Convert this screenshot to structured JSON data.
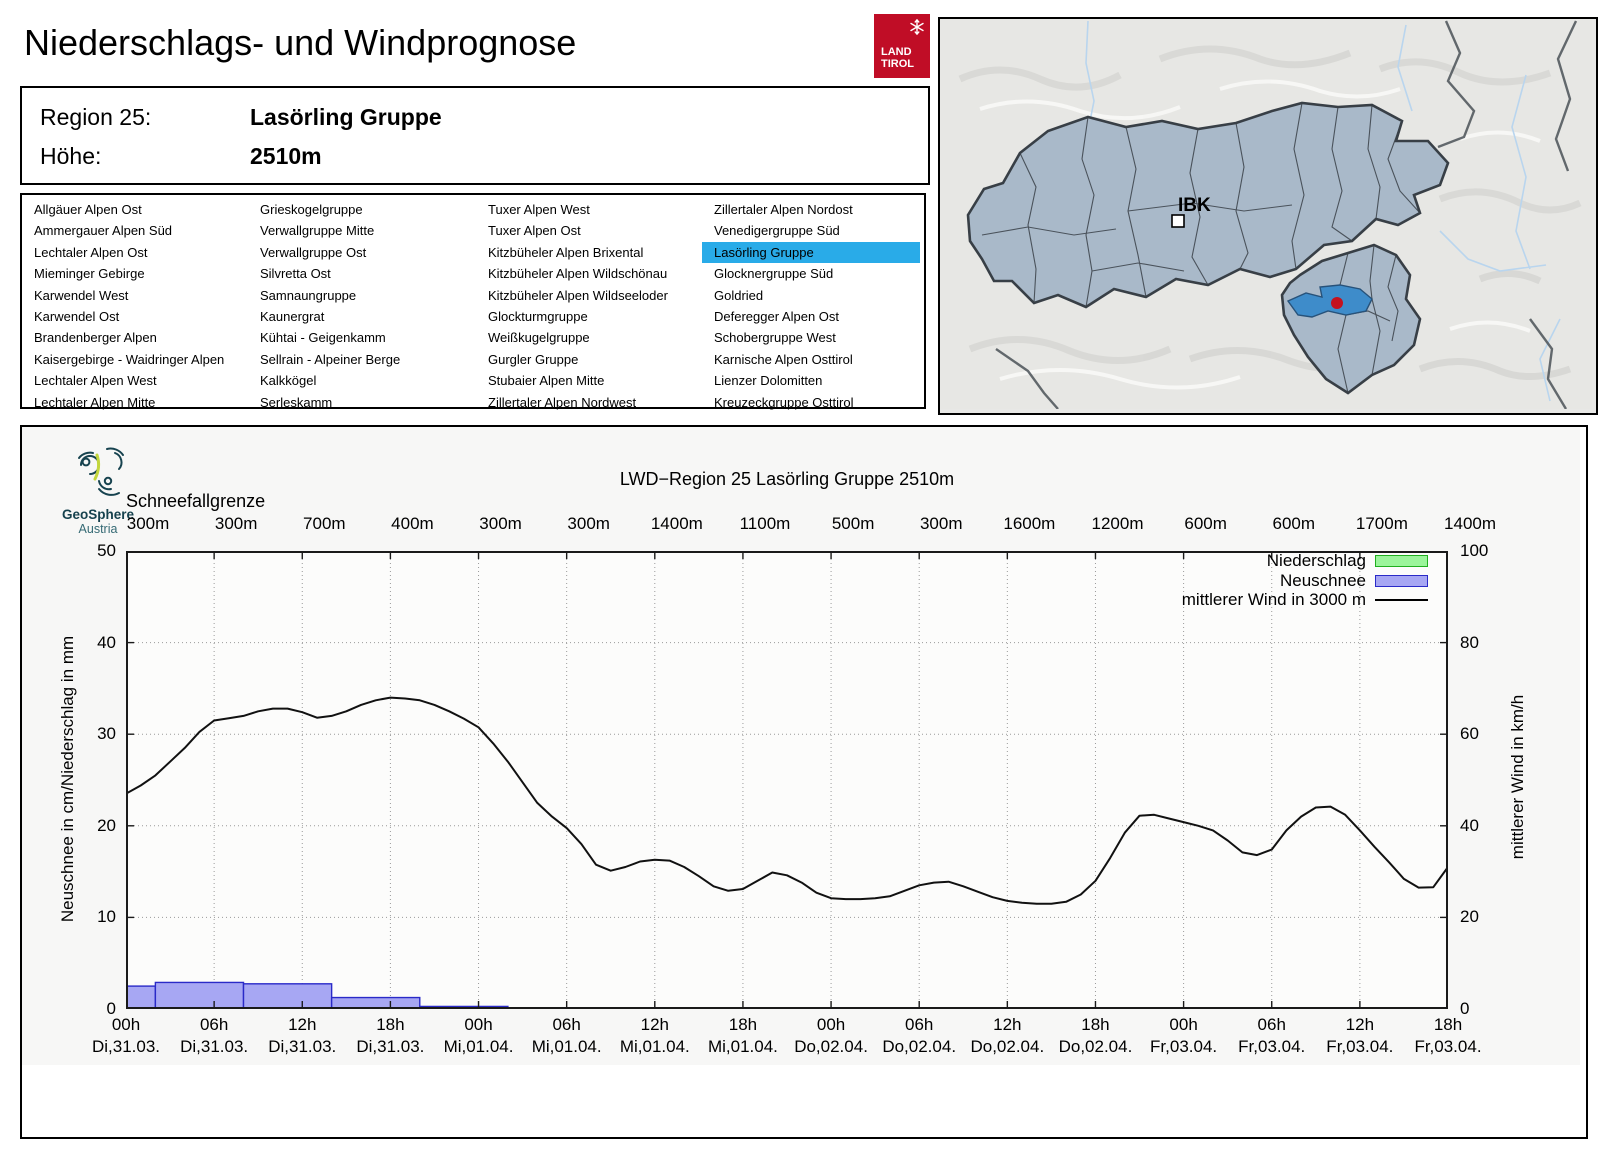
{
  "colors": {
    "accent": "#29ABE8",
    "brand_red": "#C00D26",
    "bar_fill": "#A7A7F3",
    "bar_border": "#2A2AC8",
    "precip_fill": "#9BF59B",
    "precip_border": "#1FAF1F",
    "wind_line": "#111111",
    "map_region_fill": "#A9B9C9",
    "map_selected_fill": "#3E8CCA",
    "map_dot": "#C5121F"
  },
  "header": {
    "title": "Niederschlags- und Windprognose",
    "logo": {
      "line1": "LAND",
      "line2": "TIROL"
    },
    "region_label": "Region 25:",
    "region_value": "Lasörling Gruppe",
    "altitude_label": "Höhe:",
    "altitude_value": "2510m"
  },
  "region_list": {
    "selected": "Lasörling Gruppe",
    "columns": [
      [
        "Allgäuer Alpen Ost",
        "Ammergauer Alpen Süd",
        "Lechtaler Alpen Ost",
        "Mieminger Gebirge",
        "Karwendel West",
        "Karwendel Ost",
        "Brandenberger Alpen",
        "Kaisergebirge - Waidringer Alpen",
        "Lechtaler Alpen West",
        "Lechtaler Alpen Mitte"
      ],
      [
        "Grieskogelgruppe",
        "Verwallgruppe Mitte",
        "Verwallgruppe Ost",
        "Silvretta Ost",
        "Samnaungruppe",
        "Kaunergrat",
        "Kühtai - Geigenkamm",
        "Sellrain - Alpeiner Berge",
        "Kalkkögel",
        "Serleskamm"
      ],
      [
        "Tuxer Alpen West",
        "Tuxer Alpen Ost",
        "Kitzbüheler Alpen Brixental",
        "Kitzbüheler Alpen Wildschönau",
        "Kitzbüheler Alpen Wildseeloder",
        "Glockturmgruppe",
        "Weißkugelgruppe",
        "Gurgler Gruppe",
        "Stubaier Alpen Mitte",
        "Zillertaler Alpen Nordwest"
      ],
      [
        "Zillertaler Alpen Nordost",
        "Venedigergruppe Süd",
        "Lasörling Gruppe",
        "Glocknergruppe Süd",
        "Goldried",
        "Deferegger Alpen Ost",
        "Schobergruppe West",
        "Karnische Alpen Osttirol",
        "Lienzer Dolomitten",
        "Kreuzeckgruppe Osttirol"
      ]
    ]
  },
  "map": {
    "city_label": "IBK"
  },
  "chart": {
    "source": {
      "name": "GeoSphere",
      "sub": "Austria"
    },
    "title": "LWD−Region 25 Lasörling Gruppe 2510m",
    "snowline_label": "Schneefallgrenze",
    "ylabel_left": "Neuschnee in cm/Niederschlag in mm",
    "ylabel_right": "mittlerer Wind in km/h",
    "legend": [
      {
        "label": "Niederschlag",
        "type": "box",
        "fill": "#9BF59B",
        "border": "#1FAF1F"
      },
      {
        "label": "Neuschnee",
        "type": "box",
        "fill": "#A7A7F3",
        "border": "#2A2AC8"
      },
      {
        "label": "mittlerer Wind in 3000 m",
        "type": "line",
        "color": "#000000"
      }
    ]
  },
  "chart_data": {
    "type": "mixed",
    "title": "LWD−Region 25 Lasörling Gruppe 2510m",
    "x_unit": "hours from Di,31.03. 00h",
    "x_range": [
      0,
      90
    ],
    "ylim_left": [
      0,
      50
    ],
    "ylim_right": [
      0,
      100
    ],
    "yticks_left": [
      0,
      10,
      20,
      30,
      40,
      50
    ],
    "yticks_right": [
      0,
      20,
      40,
      60,
      80,
      100
    ],
    "grid": true,
    "legend_position": "top-right",
    "xticks": [
      {
        "hour": "00h",
        "day": "Di,31.03."
      },
      {
        "hour": "06h",
        "day": "Di,31.03."
      },
      {
        "hour": "12h",
        "day": "Di,31.03."
      },
      {
        "hour": "18h",
        "day": "Di,31.03."
      },
      {
        "hour": "00h",
        "day": "Mi,01.04."
      },
      {
        "hour": "06h",
        "day": "Mi,01.04."
      },
      {
        "hour": "12h",
        "day": "Mi,01.04."
      },
      {
        "hour": "18h",
        "day": "Mi,01.04."
      },
      {
        "hour": "00h",
        "day": "Do,02.04."
      },
      {
        "hour": "06h",
        "day": "Do,02.04."
      },
      {
        "hour": "12h",
        "day": "Do,02.04."
      },
      {
        "hour": "18h",
        "day": "Do,02.04."
      },
      {
        "hour": "00h",
        "day": "Fr,03.04."
      },
      {
        "hour": "06h",
        "day": "Fr,03.04."
      },
      {
        "hour": "12h",
        "day": "Fr,03.04."
      },
      {
        "hour": "18h",
        "day": "Fr,03.04."
      }
    ],
    "snowline_values": [
      "300m",
      "300m",
      "700m",
      "400m",
      "300m",
      "300m",
      "1400m",
      "1100m",
      "500m",
      "300m",
      "1600m",
      "1200m",
      "600m",
      "600m",
      "1700m",
      "1400m"
    ],
    "neuschnee_bars_cm": [
      {
        "from_h": 0,
        "to_h": 2,
        "value": 2.5
      },
      {
        "from_h": 2,
        "to_h": 8,
        "value": 2.9
      },
      {
        "from_h": 8,
        "to_h": 14,
        "value": 2.75
      },
      {
        "from_h": 14,
        "to_h": 20,
        "value": 1.25
      },
      {
        "from_h": 20,
        "to_h": 26,
        "value": 0.28
      }
    ],
    "niederschlag_bars_mm": [],
    "wind_kmh": [
      [
        0,
        47
      ],
      [
        1,
        48.8
      ],
      [
        2,
        51
      ],
      [
        3,
        54
      ],
      [
        4,
        57
      ],
      [
        5,
        60.5
      ],
      [
        6,
        63
      ],
      [
        7,
        63.5
      ],
      [
        8,
        64
      ],
      [
        9,
        65
      ],
      [
        10,
        65.6
      ],
      [
        11,
        65.6
      ],
      [
        12,
        64.8
      ],
      [
        13,
        63.6
      ],
      [
        14,
        64
      ],
      [
        15,
        65
      ],
      [
        16,
        66.4
      ],
      [
        17,
        67.4
      ],
      [
        18,
        68
      ],
      [
        19,
        67.8
      ],
      [
        20,
        67.4
      ],
      [
        21,
        66.4
      ],
      [
        22,
        65
      ],
      [
        23,
        63.4
      ],
      [
        24,
        61.5
      ],
      [
        25,
        58
      ],
      [
        26,
        54
      ],
      [
        27,
        49.5
      ],
      [
        28,
        45
      ],
      [
        29,
        42
      ],
      [
        30,
        39.5
      ],
      [
        31,
        36
      ],
      [
        32,
        31.5
      ],
      [
        33,
        30.2
      ],
      [
        34,
        31
      ],
      [
        35,
        32.2
      ],
      [
        36,
        32.6
      ],
      [
        37,
        32.4
      ],
      [
        38,
        31
      ],
      [
        39,
        29
      ],
      [
        40,
        26.8
      ],
      [
        41,
        25.8
      ],
      [
        42,
        26.2
      ],
      [
        43,
        28
      ],
      [
        44,
        29.8
      ],
      [
        45,
        29.2
      ],
      [
        46,
        27.6
      ],
      [
        47,
        25.4
      ],
      [
        48,
        24.2
      ],
      [
        49,
        24
      ],
      [
        50,
        24
      ],
      [
        51,
        24.2
      ],
      [
        52,
        24.6
      ],
      [
        53,
        25.8
      ],
      [
        54,
        27
      ],
      [
        55,
        27.6
      ],
      [
        56,
        27.8
      ],
      [
        57,
        26.8
      ],
      [
        58,
        25.6
      ],
      [
        59,
        24.4
      ],
      [
        60,
        23.6
      ],
      [
        61,
        23.2
      ],
      [
        62,
        23
      ],
      [
        63,
        23
      ],
      [
        64,
        23.4
      ],
      [
        65,
        25
      ],
      [
        66,
        28
      ],
      [
        67,
        33
      ],
      [
        68,
        38.5
      ],
      [
        69,
        42.2
      ],
      [
        70,
        42.4
      ],
      [
        71,
        41.6
      ],
      [
        72,
        40.8
      ],
      [
        73,
        40
      ],
      [
        74,
        39
      ],
      [
        75,
        36.8
      ],
      [
        76,
        34.2
      ],
      [
        77,
        33.6
      ],
      [
        78,
        34.8
      ],
      [
        79,
        39
      ],
      [
        80,
        42
      ],
      [
        81,
        44
      ],
      [
        82,
        44.2
      ],
      [
        83,
        42.4
      ],
      [
        84,
        39
      ],
      [
        85,
        35.4
      ],
      [
        86,
        32
      ],
      [
        87,
        28.4
      ],
      [
        88,
        26.5
      ],
      [
        89,
        26.6
      ],
      [
        90,
        31
      ]
    ]
  }
}
